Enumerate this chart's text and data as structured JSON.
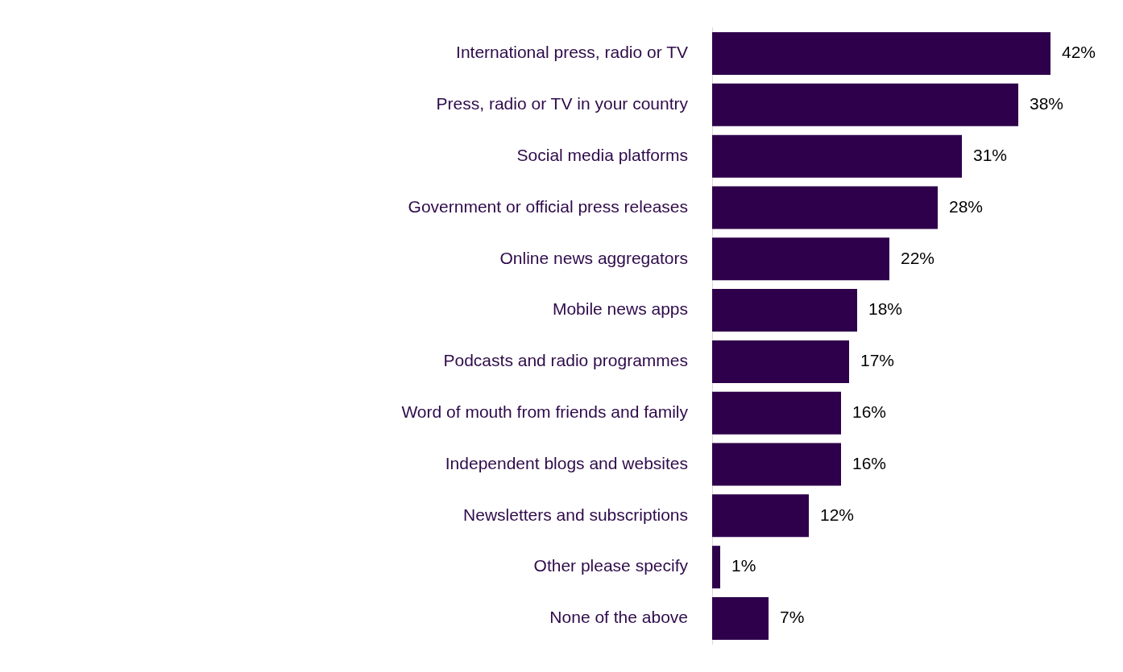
{
  "chart_data": {
    "type": "bar",
    "orientation": "horizontal",
    "categories": [
      "International press, radio or TV",
      "Press, radio or TV in your country",
      "Social media platforms",
      "Government or official press releases",
      "Online news aggregators",
      "Mobile news apps",
      "Podcasts and radio programmes",
      "Word of mouth from friends and family",
      "Independent blogs and websites",
      "Newsletters and subscriptions",
      "Other please specify",
      "None of the above"
    ],
    "values": [
      42,
      38,
      31,
      28,
      22,
      18,
      17,
      16,
      16,
      12,
      1,
      7
    ],
    "value_labels": [
      "42%",
      "38%",
      "31%",
      "28%",
      "22%",
      "18%",
      "17%",
      "16%",
      "16%",
      "12%",
      "1%",
      "7%"
    ],
    "color": "#2e004b",
    "grid": false,
    "legend": false
  }
}
